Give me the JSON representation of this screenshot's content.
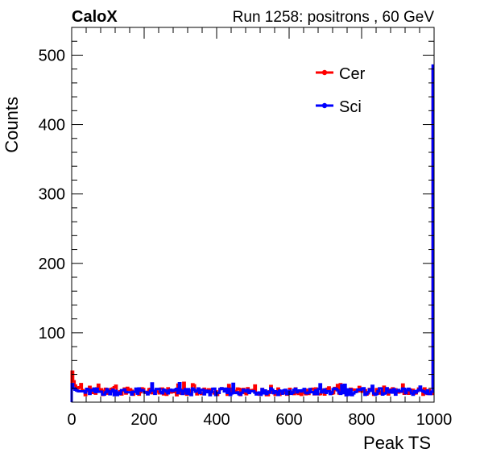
{
  "chart_data": {
    "type": "line",
    "brand_label": "CaloX",
    "title": "Run 1258: positrons , 60 GeV",
    "xlabel": "Peak TS",
    "ylabel": "Counts",
    "xlim": [
      0,
      1000
    ],
    "ylim": [
      0,
      540
    ],
    "x_ticks": [
      0,
      200,
      400,
      600,
      800,
      1000
    ],
    "y_ticks": [
      100,
      200,
      300,
      400,
      500
    ],
    "grid": false,
    "legend_position": "top-right",
    "x_bins": {
      "start": 0,
      "stop": 1000,
      "count": 250
    },
    "series": [
      {
        "name": "Cer",
        "color": "#ff0000",
        "values": [
          44,
          30,
          24,
          21,
          20,
          19,
          18,
          17,
          16,
          15,
          15,
          15,
          15,
          15,
          15,
          15,
          15,
          15,
          15,
          15,
          15,
          15,
          15,
          15,
          15,
          15,
          15,
          15,
          15,
          15,
          15,
          15,
          15,
          15,
          15,
          15,
          15,
          15,
          15,
          15,
          15,
          15,
          15,
          15,
          15,
          15,
          15,
          15,
          15,
          15,
          15,
          15,
          15,
          15,
          15,
          15,
          15,
          15,
          15,
          15,
          15,
          15,
          15,
          15,
          15,
          15,
          15,
          15,
          15,
          15,
          15,
          15,
          15,
          15,
          15,
          15,
          15,
          15,
          15,
          15,
          15,
          15,
          15,
          15,
          15,
          15,
          15,
          15,
          15,
          15,
          15,
          15,
          15,
          15,
          15,
          15,
          15,
          15,
          15,
          15,
          15,
          15,
          15,
          15,
          15,
          15,
          15,
          15,
          15,
          15,
          15,
          15,
          15,
          15,
          15,
          15,
          15,
          15,
          15,
          15,
          15,
          15,
          15,
          15,
          15,
          15,
          15,
          15,
          15,
          15,
          15,
          15,
          15,
          15,
          15,
          15,
          15,
          15,
          15,
          15,
          15,
          15,
          15,
          15,
          15,
          15,
          15,
          15,
          15,
          15,
          15,
          15,
          15,
          15,
          15,
          15,
          15,
          15,
          15,
          15,
          15,
          15,
          15,
          15,
          15,
          15,
          15,
          15,
          15,
          15,
          15,
          15,
          15,
          15,
          15,
          15,
          15,
          15,
          15,
          15,
          15,
          15,
          15,
          15,
          15,
          15,
          15,
          15,
          15,
          15,
          15,
          15,
          15,
          15,
          15,
          15,
          15,
          15,
          15,
          15,
          15,
          15,
          15,
          15,
          15,
          15,
          15,
          15,
          15,
          15,
          15,
          15,
          15,
          15,
          15,
          15,
          15,
          15,
          15,
          15,
          15,
          15,
          15,
          15,
          15,
          15,
          15,
          15,
          15,
          15,
          15,
          15,
          15,
          15,
          15,
          15,
          15,
          15,
          15,
          15,
          15,
          15,
          15,
          15,
          15,
          15,
          15,
          15,
          15,
          480
        ]
      },
      {
        "name": "Sci",
        "color": "#0000ff",
        "values": [
          26,
          20,
          18,
          17,
          16,
          15,
          15,
          15,
          15,
          15,
          15,
          15,
          15,
          15,
          15,
          15,
          15,
          15,
          15,
          15,
          15,
          15,
          15,
          15,
          15,
          15,
          15,
          15,
          15,
          15,
          15,
          15,
          15,
          15,
          15,
          15,
          15,
          15,
          15,
          15,
          15,
          15,
          15,
          15,
          15,
          15,
          15,
          15,
          15,
          15,
          15,
          15,
          15,
          15,
          15,
          15,
          15,
          15,
          15,
          15,
          15,
          15,
          15,
          15,
          15,
          15,
          15,
          15,
          15,
          15,
          15,
          15,
          15,
          15,
          15,
          15,
          15,
          15,
          15,
          15,
          15,
          15,
          15,
          15,
          15,
          15,
          15,
          15,
          15,
          15,
          15,
          15,
          15,
          15,
          15,
          15,
          15,
          15,
          15,
          15,
          15,
          15,
          15,
          15,
          15,
          15,
          15,
          15,
          15,
          15,
          15,
          15,
          15,
          15,
          15,
          15,
          15,
          15,
          15,
          15,
          15,
          15,
          15,
          15,
          15,
          15,
          15,
          15,
          15,
          15,
          15,
          15,
          15,
          15,
          15,
          15,
          15,
          15,
          15,
          15,
          15,
          15,
          15,
          15,
          15,
          15,
          15,
          15,
          15,
          15,
          15,
          15,
          15,
          15,
          15,
          15,
          15,
          15,
          15,
          15,
          15,
          15,
          15,
          15,
          15,
          15,
          15,
          15,
          15,
          15,
          15,
          15,
          15,
          15,
          15,
          15,
          15,
          15,
          15,
          15,
          15,
          15,
          15,
          15,
          15,
          15,
          15,
          15,
          15,
          15,
          15,
          15,
          15,
          15,
          15,
          15,
          15,
          15,
          15,
          15,
          15,
          15,
          15,
          15,
          15,
          15,
          15,
          15,
          15,
          15,
          15,
          15,
          15,
          15,
          15,
          15,
          15,
          15,
          15,
          15,
          15,
          15,
          15,
          15,
          15,
          15,
          15,
          15,
          15,
          15,
          15,
          15,
          15,
          15,
          15,
          15,
          15,
          15,
          15,
          15,
          15,
          15,
          15,
          15,
          15,
          15,
          15,
          15,
          15,
          485
        ]
      }
    ]
  }
}
